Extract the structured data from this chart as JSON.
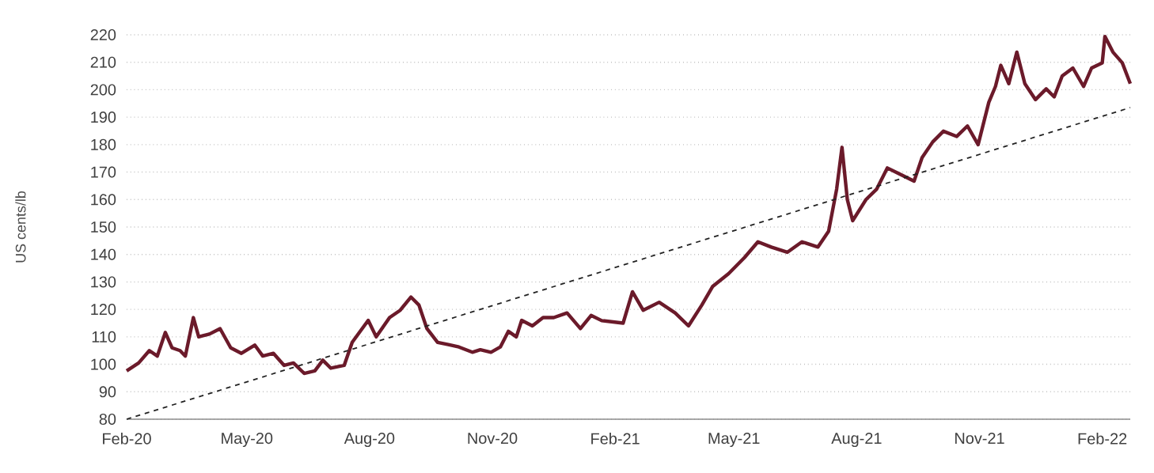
{
  "chart_data": {
    "type": "line",
    "ylabel": "US cents/lb",
    "xlim": [
      "2020-02-01",
      "2022-02-22"
    ],
    "ylim": [
      80,
      220
    ],
    "xticks": [
      {
        "value": "2020-02",
        "label": "Feb-20"
      },
      {
        "value": "2020-05",
        "label": "May-20"
      },
      {
        "value": "2020-08",
        "label": "Aug-20"
      },
      {
        "value": "2020-11",
        "label": "Nov-20"
      },
      {
        "value": "2021-02",
        "label": "Feb-21"
      },
      {
        "value": "2021-05",
        "label": "May-21"
      },
      {
        "value": "2021-08",
        "label": "Aug-21"
      },
      {
        "value": "2021-11",
        "label": "Nov-21"
      },
      {
        "value": "2022-02",
        "label": "Feb-22"
      }
    ],
    "yticks": [
      80,
      90,
      100,
      110,
      120,
      130,
      140,
      150,
      160,
      170,
      180,
      190,
      200,
      210,
      220
    ],
    "grid": "y",
    "series": [
      {
        "color": "#6b1a2a",
        "line_style": "solid",
        "x": [
          "2020-02-01",
          "2020-02-10",
          "2020-02-18",
          "2020-02-24",
          "2020-03-01",
          "2020-03-06",
          "2020-03-12",
          "2020-03-16",
          "2020-03-22",
          "2020-03-26",
          "2020-04-03",
          "2020-04-11",
          "2020-04-19",
          "2020-04-27",
          "2020-05-07",
          "2020-05-13",
          "2020-05-21",
          "2020-05-29",
          "2020-06-05",
          "2020-06-13",
          "2020-06-21",
          "2020-06-27",
          "2020-07-03",
          "2020-07-13",
          "2020-07-19",
          "2020-07-31",
          "2020-08-06",
          "2020-08-16",
          "2020-08-24",
          "2020-09-01",
          "2020-09-07",
          "2020-09-13",
          "2020-09-21",
          "2020-09-29",
          "2020-10-07",
          "2020-10-17",
          "2020-10-23",
          "2020-10-31",
          "2020-11-07",
          "2020-11-13",
          "2020-11-19",
          "2020-11-23",
          "2020-12-01",
          "2020-12-09",
          "2020-12-17",
          "2020-12-27",
          "2021-01-06",
          "2021-01-14",
          "2021-01-22",
          "2021-02-07",
          "2021-02-14",
          "2021-02-22",
          "2021-03-06",
          "2021-03-18",
          "2021-03-28",
          "2021-04-07",
          "2021-04-15",
          "2021-04-27",
          "2021-05-09",
          "2021-05-19",
          "2021-05-29",
          "2021-06-10",
          "2021-06-21",
          "2021-07-03",
          "2021-07-11",
          "2021-07-17",
          "2021-07-21",
          "2021-07-25",
          "2021-07-29",
          "2021-08-08",
          "2021-08-16",
          "2021-08-24",
          "2021-09-01",
          "2021-09-13",
          "2021-09-19",
          "2021-09-27",
          "2021-10-05",
          "2021-10-15",
          "2021-10-23",
          "2021-10-31",
          "2021-11-08",
          "2021-11-13",
          "2021-11-17",
          "2021-11-23",
          "2021-11-29",
          "2021-12-05",
          "2021-12-13",
          "2021-12-21",
          "2021-12-27",
          "2022-01-02",
          "2022-01-10",
          "2022-01-18",
          "2022-01-24",
          "2022-02-01",
          "2022-02-03",
          "2022-02-09",
          "2022-02-16",
          "2022-02-22"
        ],
        "values": [
          97.6,
          100.5,
          105,
          103,
          111.6,
          106,
          105,
          103,
          117,
          110,
          111,
          113,
          106,
          104,
          107,
          103,
          104,
          99.6,
          100.5,
          96.7,
          97.6,
          101.5,
          98.6,
          99.6,
          108,
          116,
          110,
          117,
          119.7,
          124.5,
          121.6,
          113,
          108,
          107.2,
          106.3,
          104.4,
          105.3,
          104.4,
          106.3,
          112,
          110,
          116,
          114,
          117,
          117,
          118.7,
          113,
          117.8,
          115.9,
          115,
          126.4,
          119.7,
          122.6,
          118.7,
          114,
          121.6,
          128.3,
          133,
          138.9,
          144.6,
          142.7,
          140.8,
          144.6,
          142.7,
          148.5,
          163.8,
          179,
          160,
          152.3,
          160,
          163.8,
          171.5,
          169.6,
          166.7,
          175.3,
          181,
          184.9,
          183,
          186.8,
          180,
          195.4,
          201.2,
          208.9,
          202.2,
          213.7,
          202.2,
          196.4,
          200.3,
          197.4,
          205,
          207.9,
          201.2,
          207.9,
          209.8,
          219.4,
          213.7,
          209.8,
          202.2
        ]
      },
      {
        "type": "line",
        "color": "#222222",
        "line_style": "dashed",
        "x": [
          "2020-02-01",
          "2022-02-22"
        ],
        "values": [
          80,
          193.5
        ]
      }
    ]
  }
}
